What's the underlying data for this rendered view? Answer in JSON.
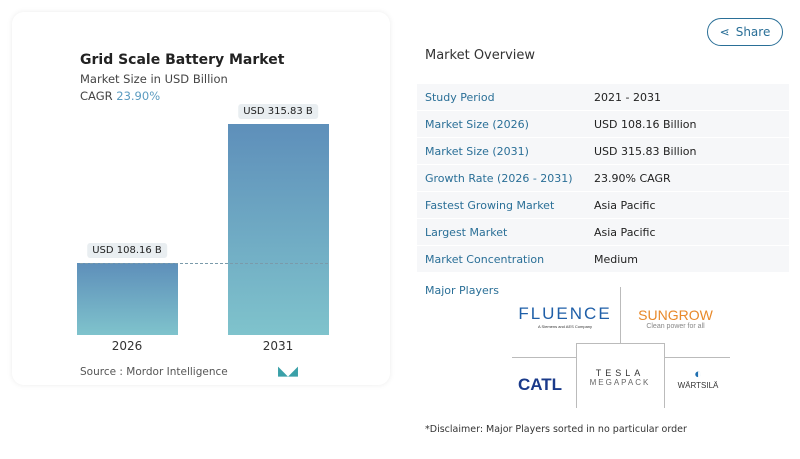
{
  "share_label": "Share",
  "chart_data": {
    "type": "bar",
    "title": "Grid Scale Battery Market",
    "subtitle": "Market Size in USD Billion",
    "cagr_label": "CAGR",
    "cagr_value": "23.90%",
    "categories": [
      "2026",
      "2031"
    ],
    "values": [
      108.16,
      315.83
    ],
    "data_labels": [
      "USD 108.16 B",
      "USD 315.83 B"
    ],
    "colors": {
      "top": "#5e8fba",
      "bottom": "#7fc3cc"
    }
  },
  "source": "Source :  Mordor Intelligence",
  "overview": {
    "title": "Market Overview",
    "rows": [
      {
        "k": "Study Period",
        "v": "2021 - 2031"
      },
      {
        "k": "Market Size (2026)",
        "v": "USD 108.16 Billion"
      },
      {
        "k": "Market Size (2031)",
        "v": "USD 315.83 Billion"
      },
      {
        "k": "Growth Rate (2026 - 2031)",
        "v": "23.90% CAGR"
      },
      {
        "k": "Fastest Growing Market",
        "v": "Asia Pacific"
      },
      {
        "k": "Largest Market",
        "v": "Asia Pacific"
      },
      {
        "k": "Market Concentration",
        "v": "Medium"
      }
    ]
  },
  "major_players": {
    "title": "Major Players",
    "logos": [
      "FLUENCE",
      "A Siemens and AES Company",
      "SUNGROW",
      "Clean power for all",
      "CATL",
      "TESLA",
      "MEGAPACK",
      "WÄRTSILÄ"
    ]
  },
  "disclaimer": "*Disclaimer: Major Players sorted in no particular order"
}
